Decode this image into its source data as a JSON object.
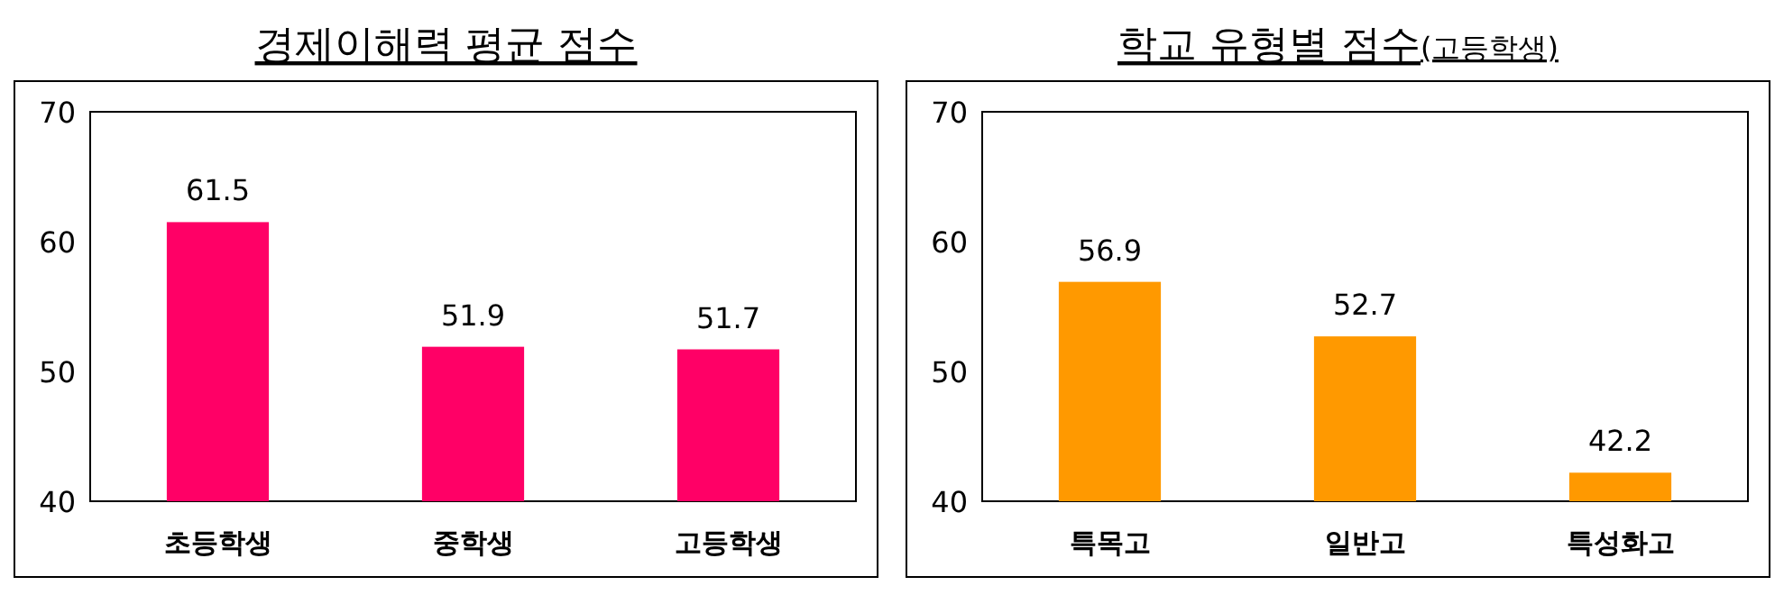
{
  "chart_data": [
    {
      "type": "bar",
      "title": "경제이해력 평균 점수",
      "categories": [
        "초등학생",
        "중학생",
        "고등학생"
      ],
      "values": [
        61.5,
        51.9,
        51.7
      ],
      "color": "#ff0066",
      "ylim": [
        40,
        70
      ],
      "yticks": [
        40,
        50,
        60,
        70
      ],
      "data_labels": true
    },
    {
      "type": "bar",
      "title": "학교 유형별 점수",
      "subtitle": "(고등학생)",
      "categories": [
        "특목고",
        "일반고",
        "특성화고"
      ],
      "values": [
        56.9,
        52.7,
        42.2
      ],
      "color": "#ff9900",
      "ylim": [
        40,
        70
      ],
      "yticks": [
        40,
        50,
        60,
        70
      ],
      "data_labels": true
    }
  ]
}
